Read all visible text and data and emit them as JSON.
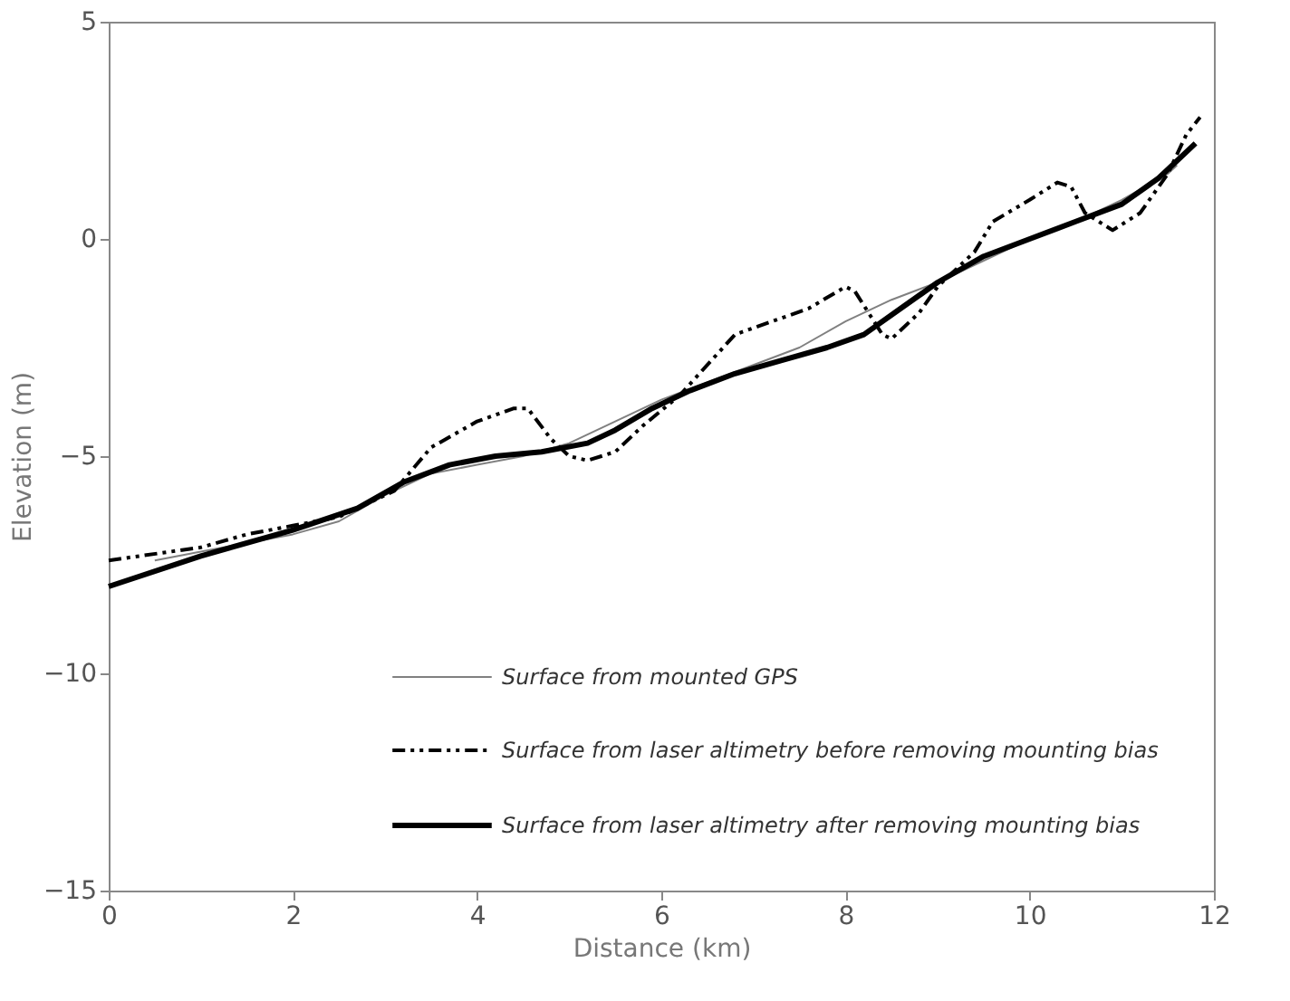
{
  "chart_data": {
    "type": "line",
    "xlabel": "Distance (km)",
    "ylabel": "Elevation (m)",
    "xlim": [
      0,
      12
    ],
    "xticks": [
      0,
      2,
      4,
      6,
      8,
      10,
      12
    ],
    "ylim": [
      -15,
      5
    ],
    "yticks": [
      -15,
      -10,
      -5,
      0,
      5
    ],
    "grid": false,
    "legend": "bottom right",
    "marker": "none",
    "series": [
      {
        "name": "Surface from mounted GPS",
        "color": "#808080",
        "line_style": "solid",
        "x": [
          0.5,
          1,
          2,
          2.5,
          3,
          3.5,
          4,
          4.5,
          5,
          5.5,
          6,
          6.5,
          7,
          7.5,
          8,
          8.5,
          9,
          9.5,
          10,
          10.5,
          11,
          11.5,
          11.6
        ],
        "values": [
          -7.4,
          -7.2,
          -6.8,
          -6.5,
          -5.9,
          -5.4,
          -5.2,
          -5.0,
          -4.7,
          -4.2,
          -3.7,
          -3.3,
          -2.9,
          -2.5,
          -1.9,
          -1.4,
          -1.0,
          -0.5,
          0.0,
          0.4,
          0.9,
          1.5,
          1.7
        ]
      },
      {
        "name": "Surface from laser altimetry before removing mounting bias",
        "color": "#000000",
        "line_style": "dashed",
        "x": [
          0,
          1,
          1.5,
          2,
          2.5,
          3.1,
          3.5,
          4.0,
          4.4,
          4.55,
          4.8,
          5.0,
          5.2,
          5.5,
          5.8,
          6.2,
          6.5,
          6.8,
          7.2,
          7.6,
          8.0,
          8.1,
          8.4,
          8.5,
          8.8,
          9.0,
          9.4,
          9.6,
          10.0,
          10.3,
          10.45,
          10.6,
          10.9,
          11.2,
          11.5,
          11.7,
          11.85
        ],
        "values": [
          -7.4,
          -7.1,
          -6.8,
          -6.6,
          -6.4,
          -5.8,
          -4.8,
          -4.2,
          -3.9,
          -3.9,
          -4.6,
          -5.0,
          -5.1,
          -4.9,
          -4.3,
          -3.6,
          -2.9,
          -2.2,
          -1.9,
          -1.6,
          -1.1,
          -1.2,
          -2.2,
          -2.3,
          -1.7,
          -1.1,
          -0.3,
          0.4,
          0.9,
          1.3,
          1.2,
          0.6,
          0.2,
          0.6,
          1.5,
          2.4,
          2.8
        ]
      },
      {
        "name": "Surface from laser altimetry after removing mounting bias",
        "color": "#000000",
        "line_style": "solid",
        "x": [
          0,
          1,
          2,
          2.7,
          3.2,
          3.7,
          4.2,
          4.7,
          5.2,
          5.5,
          5.9,
          6.3,
          6.8,
          7.3,
          7.8,
          8.2,
          8.6,
          9.0,
          9.5,
          10.0,
          10.5,
          11.0,
          11.4,
          11.8
        ],
        "values": [
          -8.0,
          -7.3,
          -6.7,
          -6.2,
          -5.6,
          -5.2,
          -5.0,
          -4.9,
          -4.7,
          -4.4,
          -3.9,
          -3.5,
          -3.1,
          -2.8,
          -2.5,
          -2.2,
          -1.6,
          -1.0,
          -0.4,
          0.0,
          0.4,
          0.8,
          1.4,
          2.2
        ]
      }
    ]
  }
}
